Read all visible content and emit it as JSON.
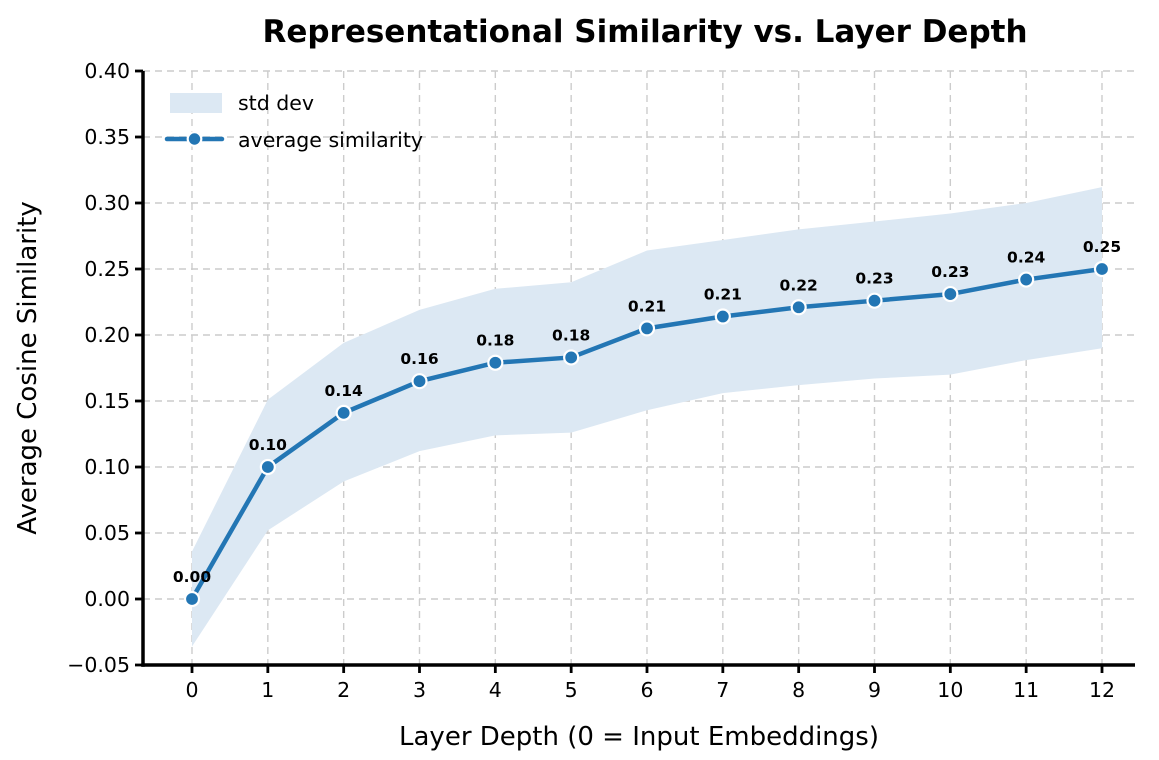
{
  "chart_data": {
    "type": "line",
    "title": "Representational Similarity vs. Layer Depth",
    "xlabel": "Layer Depth (0 = Input Embeddings)",
    "ylabel": "Average Cosine Similarity",
    "x": [
      0,
      1,
      2,
      3,
      4,
      5,
      6,
      7,
      8,
      9,
      10,
      11,
      12
    ],
    "xtick_labels": [
      "0",
      "1",
      "2",
      "3",
      "4",
      "5",
      "6",
      "7",
      "8",
      "9",
      "10",
      "11",
      "12"
    ],
    "ytick_values": [
      -0.05,
      0.0,
      0.05,
      0.1,
      0.15,
      0.2,
      0.25,
      0.3,
      0.35,
      0.4
    ],
    "ytick_labels": [
      "−0.05",
      "0.00",
      "0.05",
      "0.10",
      "0.15",
      "0.20",
      "0.25",
      "0.30",
      "0.35",
      "0.40"
    ],
    "ylim": [
      -0.05,
      0.4
    ],
    "grid": true,
    "legend_position": "upper left",
    "series": [
      {
        "name": "average similarity",
        "values": [
          0.0,
          0.1,
          0.141,
          0.165,
          0.179,
          0.183,
          0.205,
          0.214,
          0.221,
          0.226,
          0.231,
          0.242,
          0.25
        ],
        "point_labels": [
          "0.00",
          "0.10",
          "0.14",
          "0.16",
          "0.18",
          "0.18",
          "0.21",
          "0.21",
          "0.22",
          "0.23",
          "0.23",
          "0.24",
          "0.25"
        ]
      }
    ],
    "band": {
      "name": "std dev",
      "upper": [
        0.036,
        0.151,
        0.194,
        0.219,
        0.235,
        0.24,
        0.264,
        0.272,
        0.28,
        0.286,
        0.292,
        0.3,
        0.312
      ],
      "lower": [
        -0.036,
        0.052,
        0.089,
        0.112,
        0.124,
        0.126,
        0.143,
        0.156,
        0.162,
        0.167,
        0.17,
        0.181,
        0.19
      ]
    },
    "colors": {
      "line": "#2376b4",
      "marker": "#2376b4",
      "marker_edge": "#ffffff",
      "band_fill": "#dce8f3",
      "grid": "#cccccc",
      "axis": "#000000",
      "point_label": "#2376b4"
    }
  }
}
